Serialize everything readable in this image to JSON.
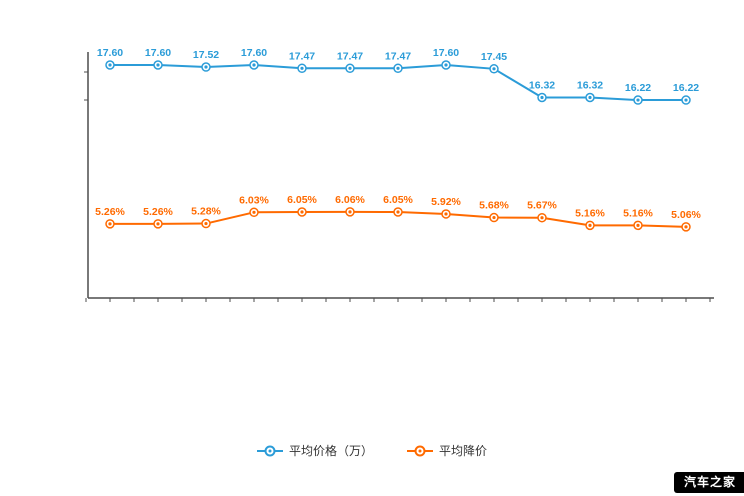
{
  "chart_data": {
    "type": "line",
    "x_count": 13,
    "categories": [
      "",
      "",
      "",
      "",
      "",
      "",
      "",
      "",
      "",
      "",
      "",
      "",
      ""
    ],
    "series": [
      {
        "name": "平均价格（万）",
        "color": "#2b9cd8",
        "unit": "",
        "values": [
          17.6,
          17.6,
          17.52,
          17.6,
          17.47,
          17.47,
          17.47,
          17.6,
          17.45,
          16.32,
          16.32,
          16.22,
          16.22
        ]
      },
      {
        "name": "平均降价",
        "color": "#ff6a00",
        "unit": "%",
        "values": [
          5.26,
          5.26,
          5.28,
          6.03,
          6.05,
          6.06,
          6.05,
          5.92,
          5.68,
          5.67,
          5.16,
          5.16,
          5.06
        ]
      }
    ],
    "legend_position": "bottom",
    "grid": false,
    "axis_color": "#4d4d4d"
  },
  "legend": {
    "items": [
      {
        "label": "平均价格（万）",
        "color": "#2b9cd8"
      },
      {
        "label": "平均降价",
        "color": "#ff6a00"
      }
    ]
  },
  "watermark": {
    "text": "汽车之家",
    "bg": "#000000",
    "fg": "#ffffff"
  }
}
